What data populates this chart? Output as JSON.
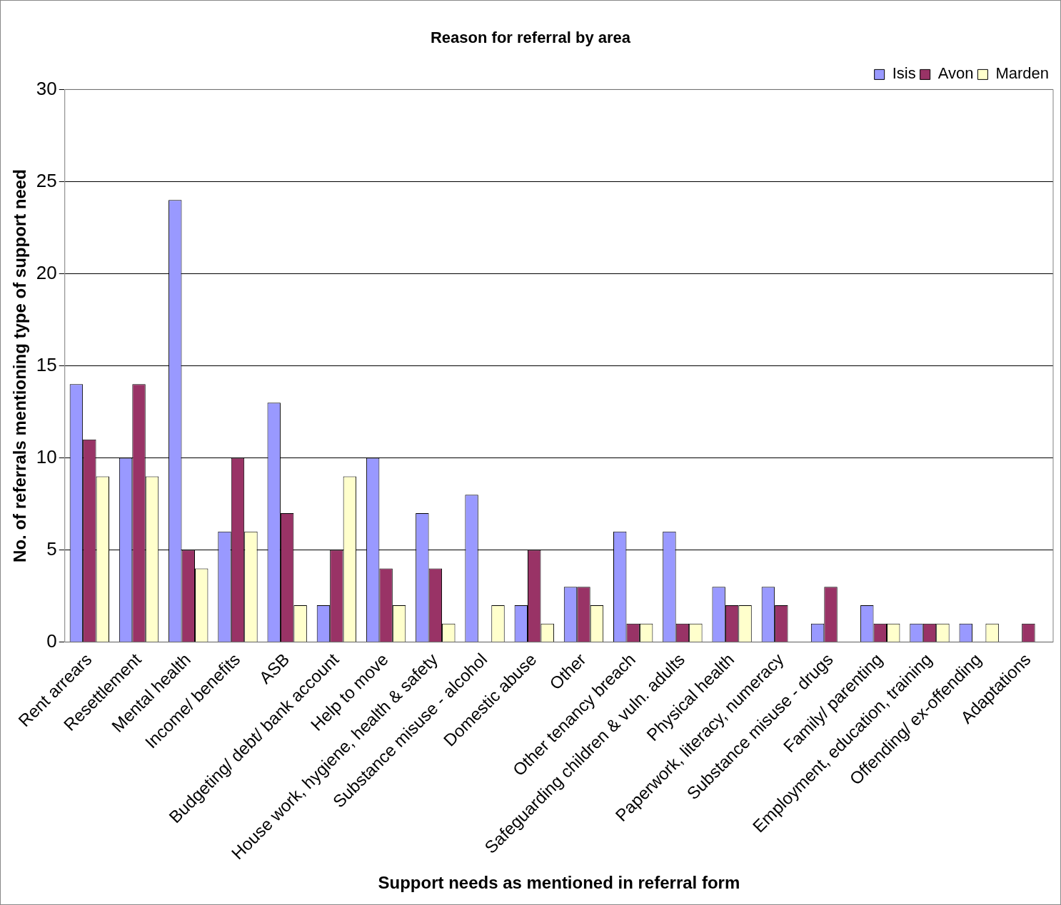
{
  "chart_data": {
    "type": "bar",
    "title": "Reason for referral by area",
    "xlabel": "Support needs as mentioned in referral form",
    "ylabel": "No. of referrals mentioning type of support need",
    "categories": [
      "Rent arrears",
      "Resettlement",
      "Mental health",
      "Income/ benefits",
      "ASB",
      "Budgeting/ debt/ bank account",
      "Help to move",
      "House work, hygiene, health & safety",
      "Substance misuse - alcohol",
      "Domestic abuse",
      "Other",
      "Other tenancy breach",
      "Safeguarding children & vuln. adults",
      "Physical health",
      "Paperwork, literacy, numeracy",
      "Substance misuse - drugs",
      "Family/ parenting",
      "Employment, education, training",
      "Offending/ ex-offending",
      "Adaptations"
    ],
    "series": [
      {
        "name": "Isis",
        "color": "#9999ff",
        "values": [
          14,
          10,
          24,
          6,
          13,
          2,
          10,
          7,
          8,
          2,
          3,
          6,
          6,
          3,
          3,
          1,
          2,
          1,
          1,
          0
        ]
      },
      {
        "name": "Avon",
        "color": "#993366",
        "values": [
          11,
          14,
          5,
          10,
          7,
          5,
          4,
          4,
          0,
          5,
          3,
          1,
          1,
          2,
          2,
          3,
          1,
          1,
          0,
          1
        ]
      },
      {
        "name": "Marden",
        "color": "#ffffcc",
        "values": [
          9,
          9,
          4,
          6,
          2,
          9,
          2,
          1,
          2,
          1,
          2,
          1,
          1,
          2,
          0,
          0,
          1,
          1,
          1,
          0
        ]
      }
    ],
    "ylim": [
      0,
      30
    ],
    "yticks": [
      0,
      5,
      10,
      15,
      20,
      25,
      30
    ],
    "grid": "y",
    "legend": "top right"
  }
}
